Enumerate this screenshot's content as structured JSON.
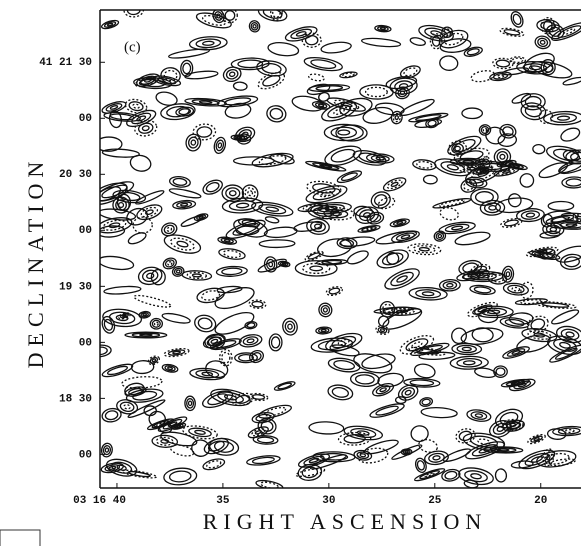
{
  "chart_data": {
    "type": "contour",
    "panel_label": "(c)",
    "xlabel": "RIGHT ASCENSION",
    "ylabel": "DECLINATION",
    "xlim": [
      11800.8,
      11778.1
    ],
    "xticks": [
      {
        "value": 11800,
        "label": "03 16 40"
      },
      {
        "value": 11795,
        "label": "35"
      },
      {
        "value": 11790,
        "label": "30"
      },
      {
        "value": 11785,
        "label": "25"
      },
      {
        "value": 11780,
        "label": "20"
      }
    ],
    "ylim": [
      148662,
      148918
    ],
    "yticks": [
      {
        "value": 148890,
        "label": "41 21 30"
      },
      {
        "value": 148860,
        "label": "00"
      },
      {
        "value": 148830,
        "label": "20 30"
      },
      {
        "value": 148800,
        "label": "00"
      },
      {
        "value": 148770,
        "label": "19 30"
      },
      {
        "value": 148740,
        "label": "00"
      },
      {
        "value": 148710,
        "label": "18 30"
      },
      {
        "value": 148680,
        "label": "00"
      }
    ]
  }
}
